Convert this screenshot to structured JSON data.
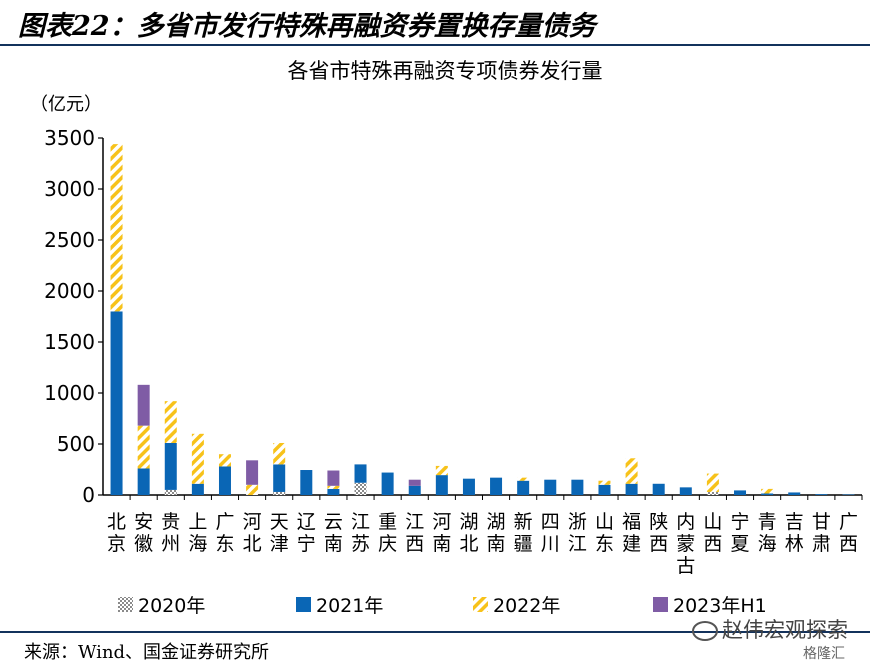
{
  "figure": {
    "label": "图表22：多省市发行特殊再融资券置换存量债务",
    "source": "来源：Wind、国金证券研究所",
    "watermark": "赵伟宏观探索",
    "watermark2": "格隆汇"
  },
  "chart_data": {
    "type": "bar",
    "stacked": true,
    "title": "各省市特殊再融资专项债券发行量",
    "ylabel": "（亿元）",
    "ylim": [
      0,
      3500
    ],
    "yticks": [
      0,
      500,
      1000,
      1500,
      2000,
      2500,
      3000,
      3500
    ],
    "grid": false,
    "legend_position": "bottom",
    "categories": [
      "北京",
      "安徽",
      "贵州",
      "上海",
      "广东",
      "河北",
      "天津",
      "辽宁",
      "云南",
      "江苏",
      "重庆",
      "江西",
      "河南",
      "湖北",
      "湖南",
      "新疆",
      "四川",
      "浙江",
      "山东",
      "福建",
      "陕西",
      "内蒙古",
      "山西",
      "宁夏",
      "青海",
      "吉林",
      "甘肃",
      "广西"
    ],
    "series": [
      {
        "name": "2020年",
        "pattern": "grid",
        "color": "#9a9a9a",
        "values": [
          0,
          0,
          50,
          0,
          0,
          0,
          30,
          0,
          0,
          120,
          0,
          0,
          0,
          0,
          0,
          0,
          0,
          0,
          0,
          0,
          0,
          0,
          30,
          0,
          0,
          0,
          0,
          0
        ]
      },
      {
        "name": "2021年",
        "pattern": "solid",
        "color": "#0a66b5",
        "values": [
          1800,
          260,
          460,
          110,
          280,
          0,
          270,
          245,
          60,
          180,
          220,
          90,
          195,
          160,
          170,
          140,
          150,
          150,
          100,
          110,
          110,
          75,
          0,
          45,
          15,
          25,
          8,
          5
        ]
      },
      {
        "name": "2022年",
        "pattern": "stripe",
        "color": "#f7c21a",
        "values": [
          1640,
          420,
          410,
          490,
          120,
          100,
          210,
          0,
          30,
          0,
          0,
          0,
          90,
          0,
          0,
          30,
          0,
          0,
          40,
          250,
          0,
          0,
          180,
          0,
          45,
          0,
          0,
          0
        ]
      },
      {
        "name": "2023年H1",
        "pattern": "solid",
        "color": "#7f5ca5",
        "values": [
          0,
          400,
          0,
          0,
          0,
          240,
          0,
          0,
          150,
          0,
          0,
          60,
          0,
          0,
          0,
          0,
          0,
          0,
          0,
          0,
          0,
          0,
          0,
          0,
          0,
          0,
          0,
          0
        ]
      }
    ]
  }
}
